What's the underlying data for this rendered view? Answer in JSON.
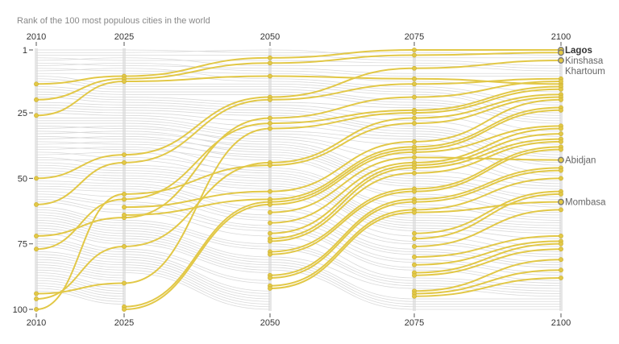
{
  "chart_data": {
    "type": "bump",
    "title": "Rank of the 100 most populous cities in the world",
    "x": [
      "2010",
      "2025",
      "2050",
      "2075",
      "2100"
    ],
    "y_ticks": [
      "1",
      "25",
      "50",
      "75",
      "100"
    ],
    "ylim": [
      1,
      100
    ],
    "y_inverted": true,
    "colors": {
      "highlight": "#e2c847",
      "background_line": "#d9d9d9",
      "column": "#e6e6e6",
      "label_dot_stroke": "#777777"
    },
    "highlighted_series": [
      {
        "name": "Lagos",
        "ranks": [
          14,
          11,
          4,
          1,
          1
        ],
        "labeled": true,
        "bold": true
      },
      {
        "name": "Kinshasa",
        "ranks": [
          20,
          12,
          6,
          3,
          2
        ],
        "labeled": true
      },
      {
        "name": "Khartoum",
        "ranks": [
          50,
          41,
          19,
          8,
          5
        ],
        "labeled": true
      },
      {
        "ranks": [
          26,
          13,
          11,
          12,
          14
        ]
      },
      {
        "ranks": [
          60,
          44,
          20,
          14,
          12
        ]
      },
      {
        "ranks": [
          72,
          65,
          27,
          19,
          13
        ]
      },
      {
        "ranks": [
          77,
          58,
          29,
          24,
          15
        ]
      },
      {
        "ranks": [
          94,
          90,
          31,
          25,
          16
        ]
      },
      {
        "ranks": [
          96,
          76,
          44,
          27,
          18
        ]
      },
      {
        "ranks": [
          100,
          56,
          45,
          29,
          19
        ]
      },
      {
        "ranks": [
          null,
          61,
          55,
          36,
          20
        ]
      },
      {
        "ranks": [
          null,
          64,
          58,
          38,
          23
        ]
      },
      {
        "ranks": [
          null,
          99,
          59,
          39,
          24
        ]
      },
      {
        "ranks": [
          null,
          100,
          60,
          40,
          30
        ]
      },
      {
        "name": "Abidjan",
        "ranks": [
          null,
          null,
          63,
          42,
          43
        ],
        "labeled": true
      },
      {
        "ranks": [
          null,
          null,
          67,
          44,
          31
        ]
      },
      {
        "ranks": [
          null,
          null,
          71,
          45,
          33
        ]
      },
      {
        "ranks": [
          null,
          null,
          73,
          46,
          35
        ]
      },
      {
        "ranks": [
          null,
          null,
          74,
          48,
          36
        ]
      },
      {
        "ranks": [
          null,
          null,
          78,
          54,
          38
        ]
      },
      {
        "ranks": [
          null,
          null,
          79,
          55,
          39
        ]
      },
      {
        "ranks": [
          null,
          null,
          87,
          58,
          46
        ]
      },
      {
        "ranks": [
          null,
          null,
          88,
          59,
          47
        ]
      },
      {
        "ranks": [
          null,
          null,
          91,
          62,
          50
        ]
      },
      {
        "name": "Mombasa",
        "ranks": [
          null,
          null,
          92,
          63,
          59
        ],
        "labeled": true
      },
      {
        "ranks": [
          null,
          null,
          null,
          71,
          55
        ]
      },
      {
        "ranks": [
          null,
          null,
          null,
          73,
          56
        ]
      },
      {
        "ranks": [
          null,
          null,
          null,
          76,
          62
        ]
      },
      {
        "ranks": [
          null,
          null,
          null,
          80,
          72
        ]
      },
      {
        "ranks": [
          null,
          null,
          null,
          83,
          74
        ]
      },
      {
        "ranks": [
          null,
          null,
          null,
          86,
          75
        ]
      },
      {
        "ranks": [
          null,
          null,
          null,
          87,
          77
        ]
      },
      {
        "ranks": [
          null,
          null,
          null,
          93,
          81
        ]
      },
      {
        "ranks": [
          null,
          null,
          null,
          94,
          85
        ]
      },
      {
        "ranks": [
          null,
          null,
          null,
          95,
          88
        ]
      }
    ],
    "background_series": [
      [
        1,
        1,
        2,
        2,
        3
      ],
      [
        2,
        2,
        1,
        4,
        4
      ],
      [
        3,
        3,
        3,
        5,
        7
      ],
      [
        4,
        5,
        5,
        6,
        8
      ],
      [
        5,
        4,
        7,
        7,
        9
      ],
      [
        6,
        7,
        8,
        10,
        10
      ],
      [
        7,
        6,
        9,
        11,
        11
      ],
      [
        8,
        9,
        10,
        13,
        17
      ],
      [
        9,
        8,
        12,
        15,
        21
      ],
      [
        10,
        10,
        13,
        16,
        22
      ],
      [
        11,
        14,
        14,
        17,
        25
      ],
      [
        12,
        15,
        15,
        18,
        26
      ],
      [
        13,
        16,
        16,
        20,
        27
      ],
      [
        15,
        17,
        17,
        21,
        28
      ],
      [
        16,
        18,
        18,
        22,
        29
      ],
      [
        17,
        19,
        21,
        23,
        32
      ],
      [
        18,
        20,
        22,
        26,
        34
      ],
      [
        19,
        21,
        23,
        28,
        37
      ],
      [
        21,
        22,
        24,
        30,
        40
      ],
      [
        22,
        23,
        25,
        31,
        41
      ],
      [
        23,
        24,
        26,
        32,
        42
      ],
      [
        24,
        25,
        28,
        33,
        44
      ],
      [
        25,
        26,
        30,
        34,
        45
      ],
      [
        27,
        27,
        32,
        35,
        48
      ],
      [
        28,
        28,
        33,
        37,
        49
      ],
      [
        29,
        29,
        34,
        41,
        51
      ],
      [
        30,
        31,
        35,
        43,
        52
      ],
      [
        31,
        30,
        36,
        47,
        53
      ],
      [
        32,
        33,
        37,
        49,
        54
      ],
      [
        33,
        32,
        38,
        50,
        57
      ],
      [
        34,
        35,
        39,
        51,
        58
      ],
      [
        35,
        34,
        40,
        52,
        60
      ],
      [
        36,
        37,
        41,
        53,
        61
      ],
      [
        37,
        36,
        42,
        56,
        63
      ],
      [
        38,
        39,
        43,
        57,
        64
      ],
      [
        39,
        38,
        46,
        60,
        65
      ],
      [
        40,
        42,
        47,
        61,
        66
      ],
      [
        41,
        40,
        48,
        64,
        67
      ],
      [
        42,
        45,
        49,
        65,
        68
      ],
      [
        43,
        43,
        50,
        66,
        69
      ],
      [
        44,
        46,
        51,
        67,
        70
      ],
      [
        45,
        47,
        52,
        68,
        71
      ],
      [
        46,
        48,
        53,
        69,
        73
      ],
      [
        47,
        49,
        54,
        70,
        76
      ],
      [
        48,
        50,
        56,
        72,
        78
      ],
      [
        49,
        51,
        57,
        74,
        79
      ],
      [
        51,
        52,
        61,
        75,
        80
      ],
      [
        52,
        53,
        62,
        77,
        82
      ],
      [
        53,
        54,
        64,
        78,
        83
      ],
      [
        54,
        55,
        65,
        79,
        84
      ],
      [
        55,
        57,
        66,
        81,
        86
      ],
      [
        56,
        59,
        68,
        82,
        87
      ],
      [
        57,
        60,
        69,
        84,
        89
      ],
      [
        58,
        62,
        70,
        85,
        90
      ],
      [
        59,
        63,
        72,
        88,
        91
      ],
      [
        61,
        66,
        75,
        89,
        92
      ],
      [
        62,
        67,
        76,
        90,
        93
      ],
      [
        63,
        68,
        77,
        91,
        94
      ],
      [
        64,
        69,
        80,
        92,
        95
      ],
      [
        65,
        70,
        81,
        96,
        96
      ],
      [
        66,
        71,
        82,
        97,
        97
      ],
      [
        67,
        72,
        83,
        98,
        98
      ],
      [
        68,
        73,
        84,
        99,
        99
      ],
      [
        69,
        74,
        85,
        100,
        100
      ],
      [
        70,
        75,
        86,
        null,
        null
      ],
      [
        71,
        77,
        89,
        null,
        null
      ],
      [
        73,
        78,
        90,
        null,
        null
      ],
      [
        74,
        79,
        93,
        null,
        null
      ],
      [
        75,
        80,
        94,
        null,
        null
      ],
      [
        76,
        81,
        95,
        null,
        null
      ],
      [
        78,
        82,
        96,
        null,
        null
      ],
      [
        79,
        83,
        97,
        null,
        null
      ],
      [
        80,
        84,
        98,
        null,
        null
      ],
      [
        81,
        85,
        99,
        null,
        null
      ],
      [
        82,
        86,
        100,
        null,
        null
      ],
      [
        83,
        87,
        null,
        null,
        null
      ],
      [
        84,
        88,
        null,
        null,
        null
      ],
      [
        85,
        89,
        null,
        null,
        null
      ],
      [
        86,
        91,
        null,
        null,
        null
      ],
      [
        87,
        92,
        null,
        null,
        null
      ],
      [
        88,
        93,
        null,
        null,
        null
      ],
      [
        89,
        94,
        null,
        null,
        null
      ],
      [
        90,
        95,
        null,
        null,
        null
      ],
      [
        91,
        96,
        null,
        null,
        null
      ],
      [
        92,
        97,
        null,
        null,
        null
      ],
      [
        93,
        98,
        null,
        null,
        null
      ],
      [
        95,
        null,
        null,
        null,
        null
      ],
      [
        97,
        null,
        null,
        null,
        null
      ],
      [
        98,
        null,
        null,
        null,
        null
      ],
      [
        99,
        null,
        null,
        null,
        null
      ]
    ]
  }
}
